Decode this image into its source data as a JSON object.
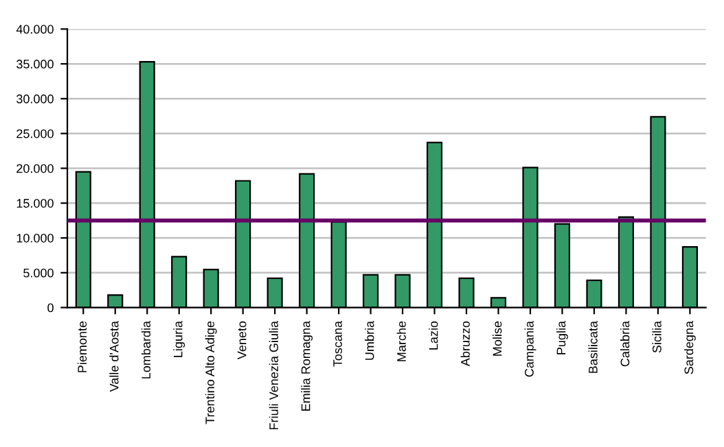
{
  "chart_data": {
    "type": "bar",
    "categories": [
      "Piemonte",
      "Valle d'Aosta",
      "Lombardia",
      "Liguria",
      "Trentino Alto Adige",
      "Veneto",
      "Friuli Venezia Giulia",
      "Emilia Romagna",
      "Toscana",
      "Umbria",
      "Marche",
      "Lazio",
      "Abruzzo",
      "Molise",
      "Campania",
      "Puglia",
      "Basilicata",
      "Calabria",
      "Sicilia",
      "Sardegna"
    ],
    "values": [
      19500,
      1800,
      35300,
      7300,
      5450,
      18200,
      4200,
      19200,
      12300,
      4700,
      4700,
      23700,
      4200,
      1400,
      20100,
      12000,
      3900,
      13000,
      27400,
      8700
    ],
    "color": "#339966",
    "ylim": [
      0,
      40000
    ],
    "yticks": [
      0,
      {
        "value": 5000,
        "label": "5.000"
      },
      {
        "value": 10000,
        "label": "10.000"
      },
      {
        "value": 15000,
        "label": "15.000"
      },
      {
        "value": 20000,
        "label": "20.000"
      },
      {
        "value": 25000,
        "label": "25.000"
      },
      {
        "value": 30000,
        "label": "30.000"
      },
      {
        "value": 35000,
        "label": "35.000"
      },
      {
        "value": 40000,
        "label": "40.000"
      }
    ],
    "grid": "y",
    "ref_lines": [
      {
        "axis": "y",
        "value": 12500,
        "color": "#660066"
      }
    ]
  }
}
